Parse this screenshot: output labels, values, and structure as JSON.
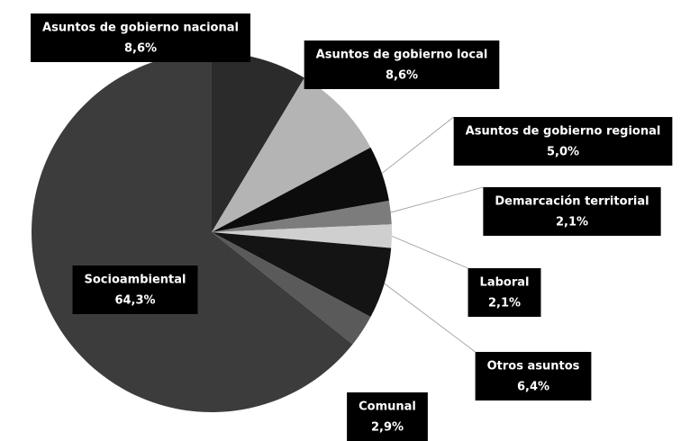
{
  "chart_data": {
    "type": "pie",
    "categories": [
      "Asuntos de gobierno nacional",
      "Asuntos de gobierno local",
      "Asuntos de gobierno regional",
      "Demarcación territorial",
      "Laboral",
      "Otros asuntos",
      "Comunal",
      "Socioambiental"
    ],
    "values": [
      8.6,
      8.6,
      5.0,
      2.1,
      2.1,
      6.4,
      2.9,
      64.3
    ],
    "value_labels": [
      "8,6%",
      "8,6%",
      "5,0%",
      "2,1%",
      "2,1%",
      "6,4%",
      "2,9%",
      "64,3%"
    ],
    "colors": [
      "#2b2b2b",
      "#b4b4b4",
      "#0c0c0c",
      "#7c7c7c",
      "#cfcfcf",
      "#141414",
      "#5a5a5a",
      "#3c3c3c"
    ]
  }
}
